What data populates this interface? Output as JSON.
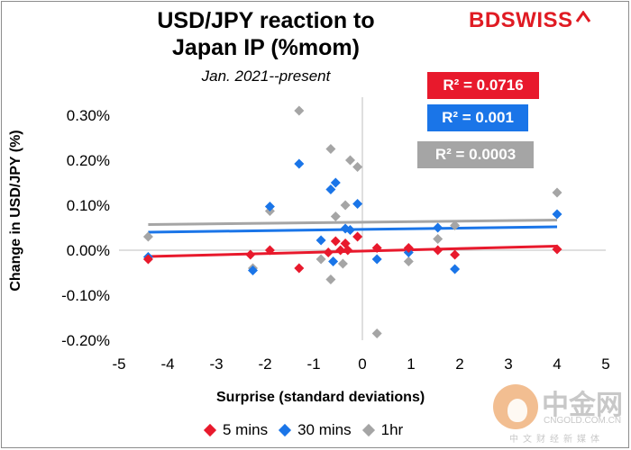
{
  "brand": {
    "logo_text": "BDSWISS",
    "logo_color": "#e01b23"
  },
  "watermark": {
    "cn": "中金网",
    "en": "CNGOLD.COM.CN",
    "sub": "中文财经新媒体"
  },
  "chart_data": {
    "type": "scatter",
    "title": "USD/JPY reaction to Japan IP (%mom)",
    "subtitle": "Jan. 2021--present",
    "xlabel": "Surprise (standard deviations)",
    "ylabel": "Change in USD/JPY (%)",
    "xlim": [
      -5,
      5
    ],
    "ylim": [
      -0.2,
      0.3
    ],
    "x_ticks": [
      "-5",
      "-4",
      "-3",
      "-2",
      "-1",
      "0",
      "1",
      "2",
      "3",
      "4",
      "5"
    ],
    "y_ticks": [
      "-0.20%",
      "-0.10%",
      "0.00%",
      "0.10%",
      "0.20%",
      "0.30%"
    ],
    "grid": false,
    "legend_position": "bottom",
    "series": [
      {
        "name": "5 mins",
        "color": "#e8192c",
        "r2_label": "R² = 0.0716",
        "trend": {
          "x": [
            -4.4,
            4.0
          ],
          "y": [
            -0.014,
            0.009
          ]
        },
        "points": [
          {
            "x": -4.4,
            "y": -0.02
          },
          {
            "x": -2.3,
            "y": -0.01
          },
          {
            "x": -1.9,
            "y": -0.0
          },
          {
            "x": -1.3,
            "y": -0.04
          },
          {
            "x": -0.7,
            "y": -0.005
          },
          {
            "x": -0.55,
            "y": 0.02
          },
          {
            "x": -0.45,
            "y": 0.0
          },
          {
            "x": -0.35,
            "y": 0.015
          },
          {
            "x": -0.3,
            "y": 0.0
          },
          {
            "x": -0.1,
            "y": 0.03
          },
          {
            "x": 0.3,
            "y": 0.005
          },
          {
            "x": 0.95,
            "y": 0.005
          },
          {
            "x": 1.55,
            "y": 0.0
          },
          {
            "x": 1.9,
            "y": -0.01
          },
          {
            "x": 4.0,
            "y": 0.002
          }
        ]
      },
      {
        "name": "30 mins",
        "color": "#1a75e8",
        "r2_label": "R² = 0.001",
        "trend": {
          "x": [
            -4.4,
            4.0
          ],
          "y": [
            0.04,
            0.052
          ]
        },
        "points": [
          {
            "x": -4.4,
            "y": -0.015
          },
          {
            "x": -2.25,
            "y": -0.045
          },
          {
            "x": -1.9,
            "y": 0.097
          },
          {
            "x": -1.3,
            "y": 0.192
          },
          {
            "x": -0.85,
            "y": 0.022
          },
          {
            "x": -0.65,
            "y": 0.135
          },
          {
            "x": -0.55,
            "y": 0.15
          },
          {
            "x": -0.6,
            "y": -0.025
          },
          {
            "x": -0.35,
            "y": 0.048
          },
          {
            "x": -0.25,
            "y": 0.045
          },
          {
            "x": -0.1,
            "y": 0.103
          },
          {
            "x": 0.3,
            "y": -0.02
          },
          {
            "x": 0.95,
            "y": -0.005
          },
          {
            "x": 1.55,
            "y": 0.05
          },
          {
            "x": 1.9,
            "y": -0.042
          },
          {
            "x": 4.0,
            "y": 0.08
          }
        ]
      },
      {
        "name": "1hr",
        "color": "#a5a5a5",
        "r2_label": "R² = 0.0003",
        "trend": {
          "x": [
            -4.4,
            4.0
          ],
          "y": [
            0.057,
            0.067
          ]
        },
        "points": [
          {
            "x": -4.4,
            "y": 0.03
          },
          {
            "x": -2.25,
            "y": -0.04
          },
          {
            "x": -1.9,
            "y": 0.087
          },
          {
            "x": -1.3,
            "y": 0.31
          },
          {
            "x": -0.85,
            "y": -0.02
          },
          {
            "x": -0.65,
            "y": 0.225
          },
          {
            "x": -0.65,
            "y": -0.065
          },
          {
            "x": -0.55,
            "y": 0.075
          },
          {
            "x": -0.4,
            "y": -0.03
          },
          {
            "x": -0.35,
            "y": 0.1
          },
          {
            "x": -0.25,
            "y": 0.2
          },
          {
            "x": -0.1,
            "y": 0.185
          },
          {
            "x": 0.3,
            "y": -0.185
          },
          {
            "x": 0.95,
            "y": -0.025
          },
          {
            "x": 1.55,
            "y": 0.025
          },
          {
            "x": 1.9,
            "y": 0.055
          },
          {
            "x": 4.0,
            "y": 0.128
          }
        ]
      }
    ]
  }
}
